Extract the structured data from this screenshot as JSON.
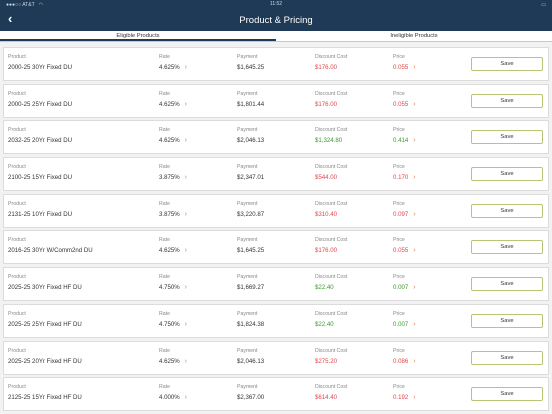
{
  "status": {
    "carrier": "●●●○○ AT&T",
    "wifi": "wifi",
    "time": "11:52",
    "battery": "battery"
  },
  "header": {
    "title": "Product & Pricing",
    "back_icon": "chevron-left-icon"
  },
  "tabs": [
    {
      "label": "Eligible Products",
      "active": true
    },
    {
      "label": "Ineligible Products",
      "active": false
    }
  ],
  "labels": {
    "product": "Product",
    "rate": "Rate",
    "payment": "Payment",
    "discount": "Discount Cost",
    "price": "Price",
    "save": "Save"
  },
  "colors": {
    "header": "#1f3a56",
    "negative": "#e0474c",
    "positive": "#3a9a2e",
    "accent": "#e0783a",
    "button_border": "#b5c774"
  },
  "rows": [
    {
      "product": "2000-25 30Yr Fixed DU",
      "rate": "4.625%",
      "payment": "$1,645.25",
      "discount": "$176.00",
      "discount_color": "red",
      "price": "0.055",
      "price_color": "red"
    },
    {
      "product": "2000-25 25Yr Fixed DU",
      "rate": "4.625%",
      "payment": "$1,801.44",
      "discount": "$176.00",
      "discount_color": "red",
      "price": "0.055",
      "price_color": "red"
    },
    {
      "product": "2032-25 20Yr Fixed DU",
      "rate": "4.625%",
      "payment": "$2,046.13",
      "discount": "$1,324.80",
      "discount_color": "green",
      "price": "0.414",
      "price_color": "green"
    },
    {
      "product": "2100-25 15Yr Fixed DU",
      "rate": "3.875%",
      "payment": "$2,347.01",
      "discount": "$544.00",
      "discount_color": "red",
      "price": "0.170",
      "price_color": "red"
    },
    {
      "product": "2131-25 10Yr Fixed DU",
      "rate": "3.875%",
      "payment": "$3,220.87",
      "discount": "$310.40",
      "discount_color": "red",
      "price": "0.097",
      "price_color": "red"
    },
    {
      "product": "2016-25 30Yr W/Comm2nd DU",
      "rate": "4.625%",
      "payment": "$1,645.25",
      "discount": "$176.00",
      "discount_color": "red",
      "price": "0.055",
      "price_color": "red"
    },
    {
      "product": "2025-25 30Yr Fixed HF DU",
      "rate": "4.750%",
      "payment": "$1,669.27",
      "discount": "$22.40",
      "discount_color": "green",
      "price": "0.007",
      "price_color": "green"
    },
    {
      "product": "2025-25 25Yr Fixed HF DU",
      "rate": "4.750%",
      "payment": "$1,824.38",
      "discount": "$22.40",
      "discount_color": "green",
      "price": "0.007",
      "price_color": "green"
    },
    {
      "product": "2025-25 20Yr Fixed HF DU",
      "rate": "4.625%",
      "payment": "$2,046.13",
      "discount": "$275.20",
      "discount_color": "red",
      "price": "0.086",
      "price_color": "red"
    },
    {
      "product": "2125-25 15Yr Fixed HF DU",
      "rate": "4.000%",
      "payment": "$2,367.00",
      "discount": "$614.40",
      "discount_color": "red",
      "price": "0.192",
      "price_color": "red"
    }
  ]
}
